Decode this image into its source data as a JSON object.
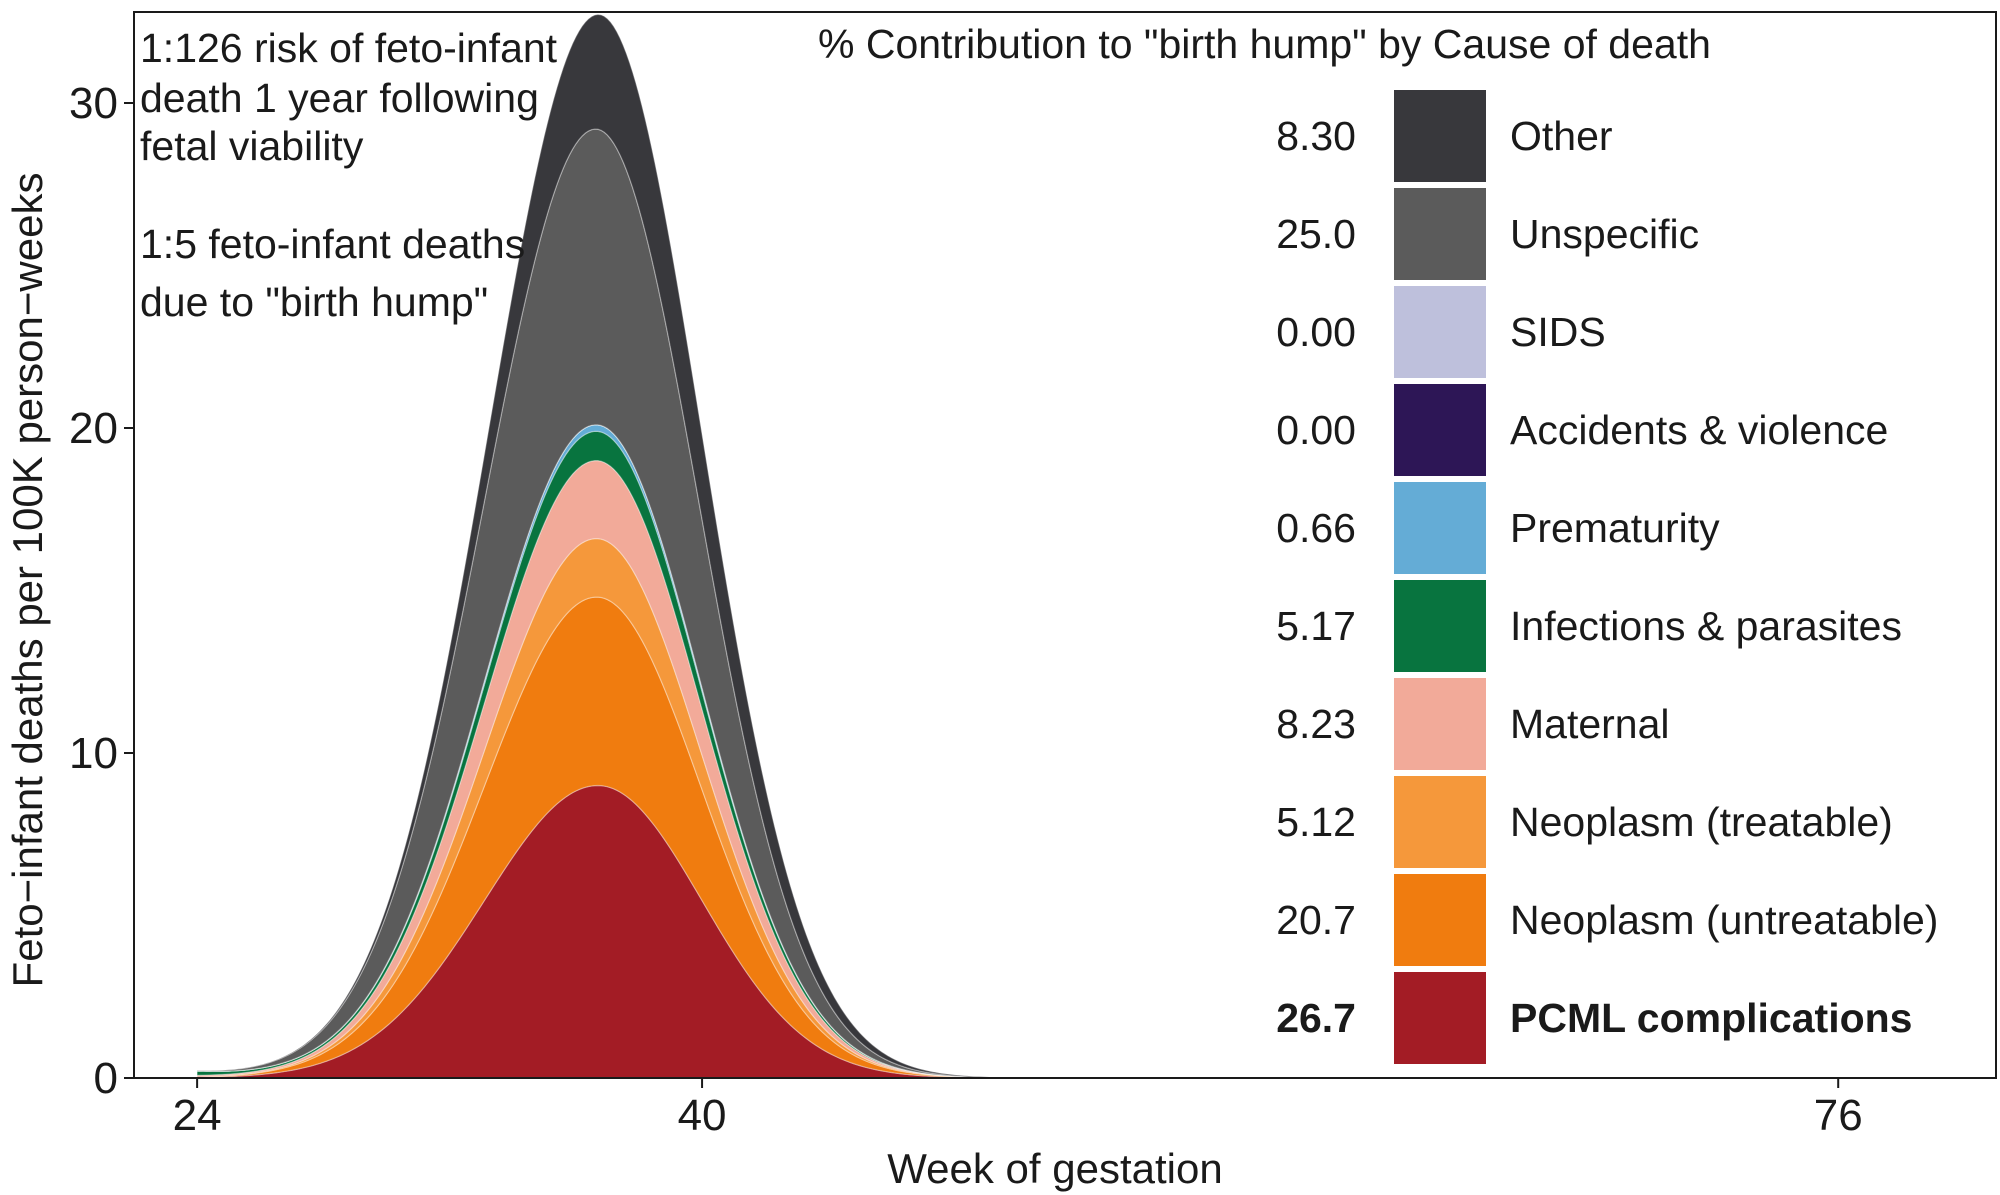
{
  "chart_data": {
    "type": "area",
    "stacked": true,
    "xlabel": "Week of gestation",
    "ylabel": "Feto−infant deaths per 100K person−weeks",
    "xlim": [
      22,
      81
    ],
    "ylim": [
      0,
      32.8
    ],
    "x_ticks": [
      24,
      40,
      76
    ],
    "y_ticks": [
      0,
      10,
      20,
      30
    ],
    "grid": false,
    "annotations": [
      "1:126 risk of feto-infant",
      "death 1 year following",
      "fetal viability",
      "1:5 feto-infant deaths",
      "due to \"birth hump\""
    ],
    "legend": {
      "title": "% Contribution to \"birth hump\" by  Cause of death",
      "placement": "right",
      "entries": [
        {
          "value": "8.30",
          "label": "Other",
          "color": "#38383c",
          "bold": false
        },
        {
          "value": "25.0",
          "label": "Unspecific",
          "color": "#5b5b5b",
          "bold": false
        },
        {
          "value": "0.00",
          "label": "SIDS",
          "color": "#bec0dc",
          "bold": false
        },
        {
          "value": "0.00",
          "label": "Accidents & violence",
          "color": "#2d1656",
          "bold": false
        },
        {
          "value": "0.66",
          "label": "Prematurity",
          "color": "#64acd6",
          "bold": false
        },
        {
          "value": "5.17",
          "label": "Infections & parasites",
          "color": "#08743f",
          "bold": false
        },
        {
          "value": "8.23",
          "label": "Maternal",
          "color": "#f2aa99",
          "bold": false
        },
        {
          "value": "5.12",
          "label": "Neoplasm (treatable)",
          "color": "#f5983b",
          "bold": false
        },
        {
          "value": "20.7",
          "label": "Neoplasm (untreatable)",
          "color": "#f07c0f",
          "bold": false
        },
        {
          "value": "26.7",
          "label": "PCML complications",
          "color": "#a31c25",
          "bold": true
        }
      ]
    },
    "series": [
      {
        "name": "PCML complications",
        "color": "#a31c25",
        "peak_x": 36.7,
        "peak_y": 9.0,
        "sigma_left": 3.6,
        "sigma_right": 3.3,
        "base": 0.0
      },
      {
        "name": "Neoplasm (untreatable)",
        "color": "#f07c0f",
        "peak_x": 36.6,
        "peak_y": 5.8,
        "sigma_left": 3.5,
        "sigma_right": 3.3,
        "base": 0.0
      },
      {
        "name": "Neoplasm (treatable)",
        "color": "#f5983b",
        "peak_x": 36.6,
        "peak_y": 1.8,
        "sigma_left": 3.5,
        "sigma_right": 3.3,
        "base": 0.0
      },
      {
        "name": "Maternal",
        "color": "#f2aa99",
        "peak_x": 36.6,
        "peak_y": 2.4,
        "sigma_left": 3.5,
        "sigma_right": 3.3,
        "base": 0.05
      },
      {
        "name": "Infections & parasites",
        "color": "#08743f",
        "peak_x": 36.6,
        "peak_y": 0.9,
        "sigma_left": 3.6,
        "sigma_right": 3.4,
        "base": 0.13
      },
      {
        "name": "Prematurity",
        "color": "#64acd6",
        "peak_x": 36.6,
        "peak_y": 0.2,
        "sigma_left": 3.5,
        "sigma_right": 3.3,
        "base": 0.0
      },
      {
        "name": "Accidents & violence",
        "color": "#2d1656",
        "peak_x": 36.6,
        "peak_y": 0.0,
        "sigma_left": 3.5,
        "sigma_right": 3.3,
        "base": 0.0
      },
      {
        "name": "SIDS",
        "color": "#bec0dc",
        "peak_x": 36.6,
        "peak_y": 0.0,
        "sigma_left": 3.5,
        "sigma_right": 3.3,
        "base": 0.0
      },
      {
        "name": "Unspecific",
        "color": "#5b5b5b",
        "peak_x": 36.6,
        "peak_y": 9.1,
        "sigma_left": 3.5,
        "sigma_right": 3.2,
        "base": 0.0
      },
      {
        "name": "Other",
        "color": "#38383c",
        "peak_x": 37.3,
        "peak_y": 3.6,
        "sigma_left": 3.1,
        "sigma_right": 3.4,
        "base": 0.0
      }
    ]
  }
}
